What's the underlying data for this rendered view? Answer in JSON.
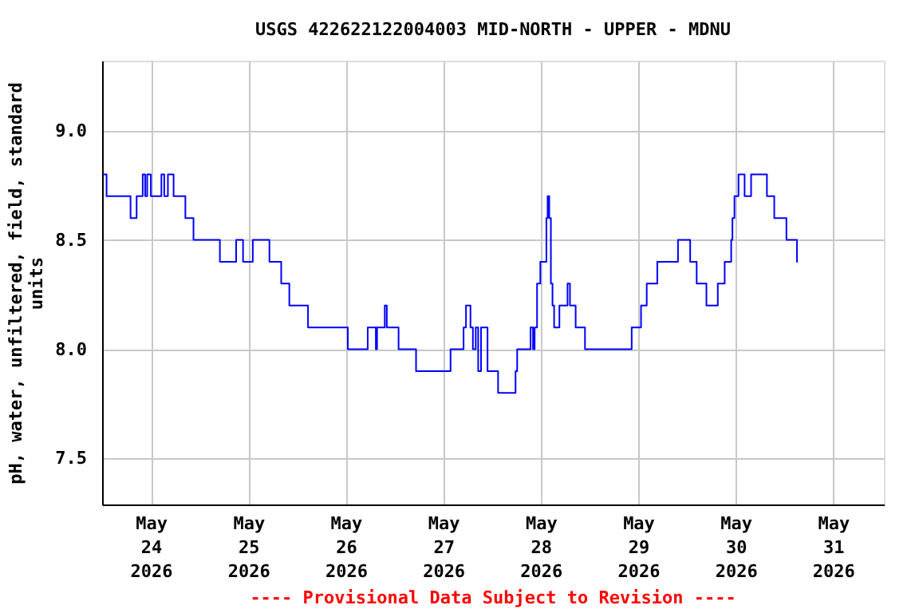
{
  "chart_data": {
    "type": "step",
    "title": "USGS 422622122004003 MID-NORTH - UPPER  - MDNU",
    "ylabel": "pH, water, unfiltered, field, standard units",
    "annotations": [
      "---- Provisional Data Subject to Revision ----"
    ],
    "x": [
      "2026-05-23T12:12",
      "2026-05-23T13:06",
      "2026-05-23T19:00",
      "2026-05-23T20:30",
      "2026-05-23T22:00",
      "2026-05-23T22:36",
      "2026-05-23T23:06",
      "2026-05-24T00:00",
      "2026-05-24T02:36",
      "2026-05-24T03:18",
      "2026-05-24T04:12",
      "2026-05-24T05:36",
      "2026-05-24T08:30",
      "2026-05-24T10:30",
      "2026-05-24T17:00",
      "2026-05-24T21:00",
      "2026-05-24T22:42",
      "2026-05-25T01:06",
      "2026-05-25T05:12",
      "2026-05-25T08:06",
      "2026-05-25T10:06",
      "2026-05-25T14:42",
      "2026-05-26T00:30",
      "2026-05-26T05:24",
      "2026-05-26T07:24",
      "2026-05-26T07:42",
      "2026-05-26T09:36",
      "2026-05-26T10:06",
      "2026-05-26T13:00",
      "2026-05-26T17:18",
      "2026-05-27T01:48",
      "2026-05-27T05:00",
      "2026-05-27T05:36",
      "2026-05-27T06:42",
      "2026-05-27T07:18",
      "2026-05-27T08:00",
      "2026-05-27T08:36",
      "2026-05-27T09:18",
      "2026-05-27T10:54",
      "2026-05-27T13:30",
      "2026-05-27T17:48",
      "2026-05-27T18:12",
      "2026-05-27T21:30",
      "2026-05-27T22:06",
      "2026-05-27T22:30",
      "2026-05-27T23:06",
      "2026-05-27T23:54",
      "2026-05-28T01:24",
      "2026-05-28T01:42",
      "2026-05-28T02:06",
      "2026-05-28T02:30",
      "2026-05-28T02:54",
      "2026-05-28T03:18",
      "2026-05-28T04:36",
      "2026-05-28T06:36",
      "2026-05-28T07:12",
      "2026-05-28T08:36",
      "2026-05-28T10:54",
      "2026-05-28T22:24",
      "2026-05-29T00:42",
      "2026-05-29T02:06",
      "2026-05-29T04:42",
      "2026-05-29T09:48",
      "2026-05-29T12:48",
      "2026-05-29T14:24",
      "2026-05-29T16:48",
      "2026-05-29T19:36",
      "2026-05-29T21:18",
      "2026-05-29T22:54",
      "2026-05-29T23:12",
      "2026-05-29T23:42",
      "2026-05-30T00:42",
      "2026-05-30T02:12",
      "2026-05-30T03:48",
      "2026-05-30T07:42",
      "2026-05-30T09:30",
      "2026-05-30T12:30",
      "2026-05-30T15:06",
      "2026-05-30T15:18"
    ],
    "series": [
      {
        "color": "#0000ff",
        "values": [
          8.8,
          8.7,
          8.6,
          8.7,
          8.8,
          8.7,
          8.8,
          8.7,
          8.8,
          8.7,
          8.8,
          8.7,
          8.6,
          8.5,
          8.4,
          8.5,
          8.4,
          8.5,
          8.4,
          8.3,
          8.2,
          8.1,
          8.0,
          8.1,
          8.0,
          8.1,
          8.2,
          8.1,
          8.0,
          7.9,
          8.0,
          8.1,
          8.2,
          8.1,
          8.0,
          8.1,
          7.9,
          8.1,
          7.9,
          7.8,
          7.9,
          8.0,
          8.1,
          8.0,
          8.1,
          8.3,
          8.4,
          8.6,
          8.7,
          8.6,
          8.3,
          8.2,
          8.1,
          8.2,
          8.3,
          8.2,
          8.1,
          8.0,
          8.1,
          8.2,
          8.3,
          8.4,
          8.5,
          8.4,
          8.3,
          8.2,
          8.3,
          8.4,
          8.5,
          8.6,
          8.7,
          8.8,
          8.7,
          8.8,
          8.7,
          8.6,
          8.5,
          8.4,
          8.4
        ]
      }
    ],
    "xlim": [
      "2026-05-23T12:00",
      "2026-05-31T12:30"
    ],
    "xticks": [
      {
        "value": "2026-05-24",
        "label": "May 24 2026"
      },
      {
        "value": "2026-05-25",
        "label": "May 25 2026"
      },
      {
        "value": "2026-05-26",
        "label": "May 26 2026"
      },
      {
        "value": "2026-05-27",
        "label": "May 27 2026"
      },
      {
        "value": "2026-05-28",
        "label": "May 28 2026"
      },
      {
        "value": "2026-05-29",
        "label": "May 29 2026"
      },
      {
        "value": "2026-05-30",
        "label": "May 30 2026"
      },
      {
        "value": "2026-05-31",
        "label": "May 31 2026"
      }
    ],
    "ylim": [
      7.29,
      9.32
    ],
    "yticks": [
      {
        "value": 7.5,
        "label": "7.5"
      },
      {
        "value": 8,
        "label": "8.0"
      },
      {
        "value": 8.5,
        "label": "8.5"
      },
      {
        "value": 9,
        "label": "9.0"
      }
    ],
    "grid": true,
    "line_style": "solid",
    "marker": "none"
  }
}
